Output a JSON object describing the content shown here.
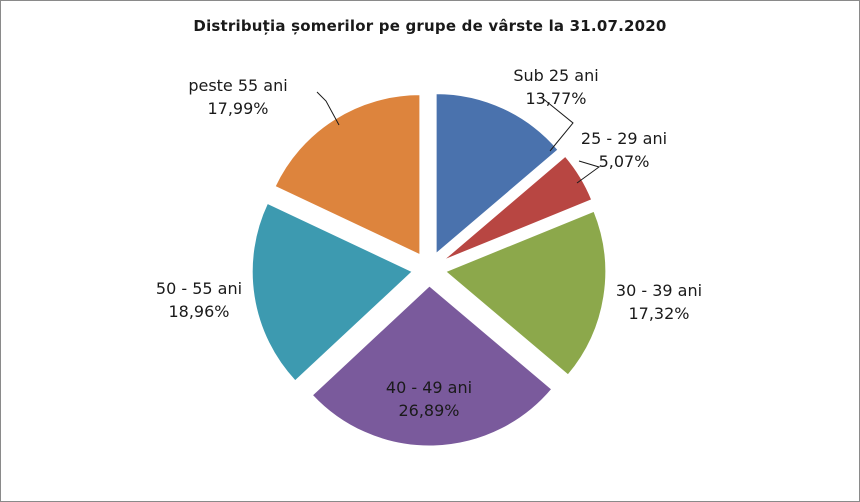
{
  "chart_data": {
    "type": "pie",
    "title": "Distribuția șomerilor pe grupe de vârste la 31.07.2020",
    "slices": [
      {
        "name": "Sub 25 ani",
        "value": 13.77,
        "value_label": "13,77%",
        "color": "#4a72ad"
      },
      {
        "name": "25 - 29 ani",
        "value": 5.07,
        "value_label": "5,07%",
        "color": "#b84642"
      },
      {
        "name": "30 - 39 ani",
        "value": 17.32,
        "value_label": "17,32%",
        "color": "#8ca84b"
      },
      {
        "name": "40 - 49 ani",
        "value": 26.89,
        "value_label": "26,89%",
        "color": "#7a5a9c"
      },
      {
        "name": "50 - 55 ani",
        "value": 18.96,
        "value_label": "18,96%",
        "color": "#3d9ab0"
      },
      {
        "name": "peste 55 ani",
        "value": 17.99,
        "value_label": "17,99%",
        "color": "#dd843d"
      }
    ],
    "legend": "none",
    "data_labels": "name and percent"
  }
}
